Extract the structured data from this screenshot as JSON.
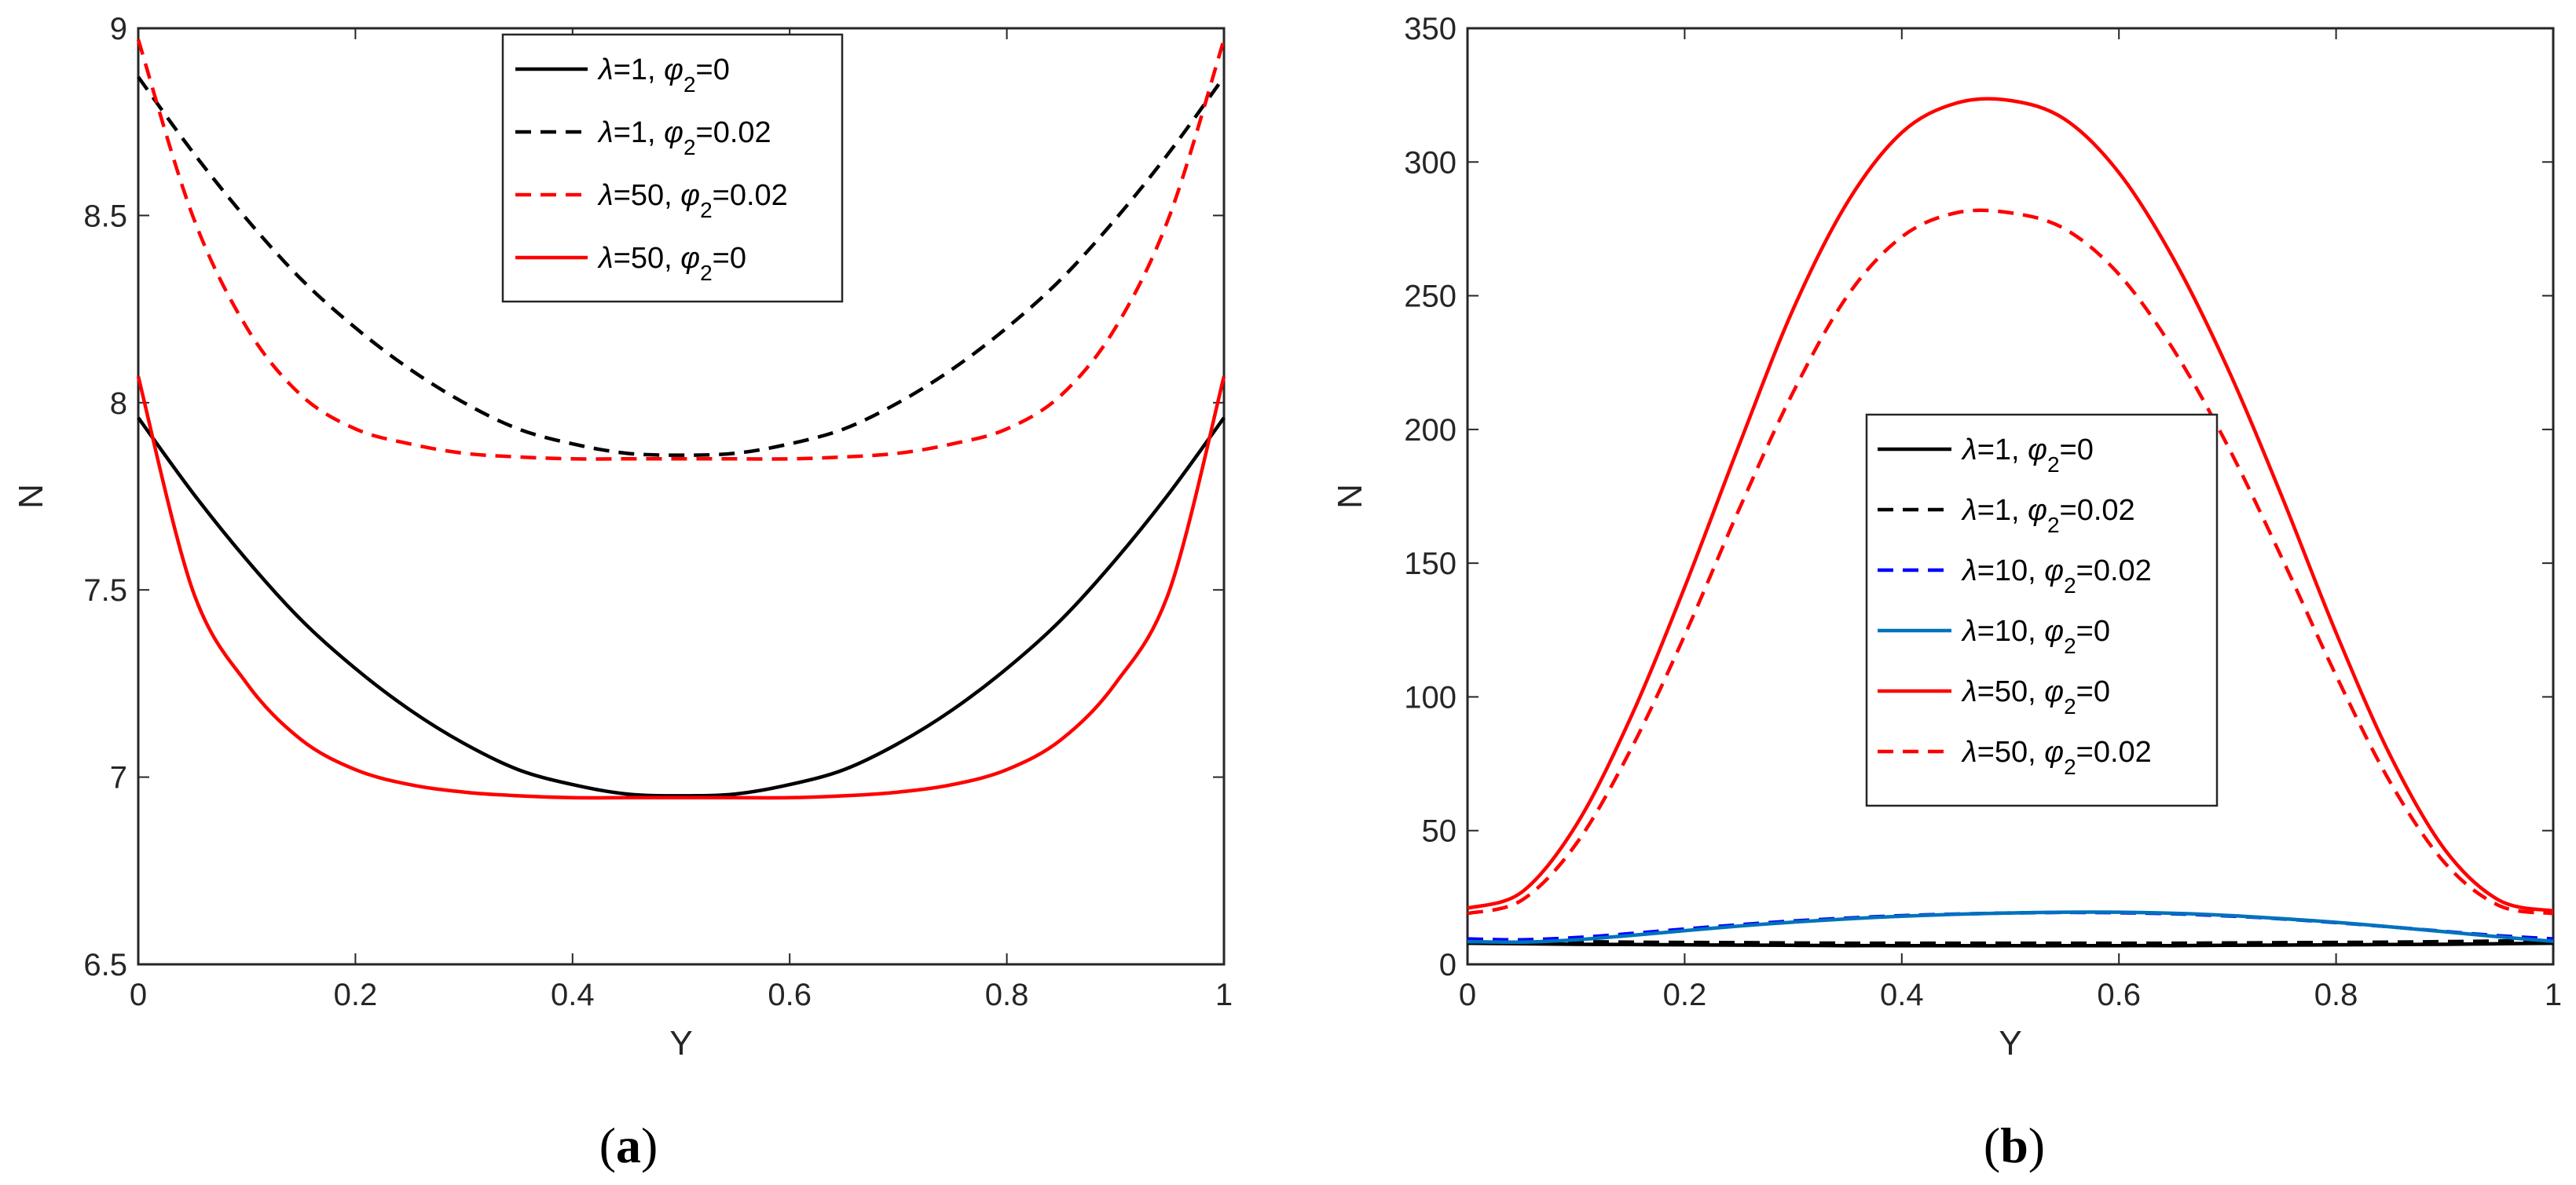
{
  "chart_data": [
    {
      "type": "line",
      "panel": "a",
      "caption": {
        "open": "(",
        "letter": "a",
        "close": ")"
      },
      "xlabel": "Y",
      "ylabel": "N",
      "xlim": [
        0,
        1
      ],
      "ylim": [
        6.5,
        9
      ],
      "xticks": [
        "0",
        "0.2",
        "0.4",
        "0.6",
        "0.8",
        "1"
      ],
      "yticks": [
        "6.5",
        "7",
        "7.5",
        "8",
        "8.5",
        "9"
      ],
      "legend_position": "top-right",
      "x": [
        0,
        0.05,
        0.1,
        0.15,
        0.2,
        0.25,
        0.3,
        0.35,
        0.4,
        0.45,
        0.5,
        0.55,
        0.6,
        0.65,
        0.7,
        0.75,
        0.8,
        0.85,
        0.9,
        0.95,
        1
      ],
      "series": [
        {
          "name": {
            "prefix": "λ",
            "mid": "=1, ",
            "phi": "φ",
            "sub": "2",
            "suffix": "=0"
          },
          "color": "#000000",
          "dash": false,
          "values": [
            7.96,
            7.76,
            7.58,
            7.42,
            7.29,
            7.18,
            7.09,
            7.02,
            6.98,
            6.955,
            6.95,
            6.955,
            6.98,
            7.02,
            7.09,
            7.18,
            7.29,
            7.42,
            7.58,
            7.76,
            7.96
          ]
        },
        {
          "name": {
            "prefix": "λ",
            "mid": "=1, ",
            "phi": "φ",
            "sub": "2",
            "suffix": "=0.02"
          },
          "color": "#000000",
          "dash": true,
          "values": [
            8.87,
            8.67,
            8.49,
            8.33,
            8.2,
            8.09,
            8.0,
            7.93,
            7.89,
            7.865,
            7.86,
            7.865,
            7.89,
            7.93,
            8.0,
            8.09,
            8.2,
            8.33,
            8.49,
            8.67,
            8.87
          ]
        },
        {
          "name": {
            "prefix": "λ",
            "mid": "=50, ",
            "phi": "φ",
            "sub": "2",
            "suffix": "=0.02"
          },
          "color": "#ff0000",
          "dash": true,
          "values": [
            8.97,
            8.5,
            8.2,
            8.02,
            7.93,
            7.89,
            7.865,
            7.855,
            7.85,
            7.85,
            7.85,
            7.85,
            7.85,
            7.855,
            7.865,
            7.89,
            7.93,
            8.02,
            8.2,
            8.5,
            8.97
          ]
        },
        {
          "name": {
            "prefix": "λ",
            "mid": "=50, ",
            "phi": "φ",
            "sub": "2",
            "suffix": "=0"
          },
          "color": "#ff0000",
          "dash": false,
          "values": [
            8.07,
            7.5,
            7.25,
            7.1,
            7.02,
            6.98,
            6.96,
            6.95,
            6.945,
            6.945,
            6.945,
            6.945,
            6.945,
            6.95,
            6.96,
            6.98,
            7.02,
            7.1,
            7.25,
            7.5,
            8.07
          ]
        }
      ]
    },
    {
      "type": "line",
      "panel": "b",
      "caption": {
        "open": "(",
        "letter": "b",
        "close": ")"
      },
      "xlabel": "Y",
      "ylabel": "N",
      "xlim": [
        0,
        1
      ],
      "ylim": [
        0,
        350
      ],
      "xticks": [
        "0",
        "0.2",
        "0.4",
        "0.6",
        "0.8",
        "1"
      ],
      "yticks": [
        "0",
        "50",
        "100",
        "150",
        "200",
        "250",
        "300",
        "350"
      ],
      "legend_position": "center",
      "x": [
        0,
        0.05,
        0.1,
        0.15,
        0.2,
        0.25,
        0.3,
        0.35,
        0.4,
        0.45,
        0.5,
        0.55,
        0.6,
        0.65,
        0.7,
        0.75,
        0.8,
        0.85,
        0.9,
        0.95,
        1
      ],
      "series": [
        {
          "name": {
            "prefix": "λ",
            "mid": "=1, ",
            "phi": "φ",
            "sub": "2",
            "suffix": "=0"
          },
          "color": "#000000",
          "dash": false,
          "values": [
            7.9,
            7.7,
            7.5,
            7.4,
            7.3,
            7.2,
            7.1,
            7.0,
            7.0,
            6.95,
            6.95,
            6.95,
            7.0,
            7.0,
            7.1,
            7.2,
            7.3,
            7.4,
            7.5,
            7.7,
            7.9
          ]
        },
        {
          "name": {
            "prefix": "λ",
            "mid": "=1, ",
            "phi": "φ",
            "sub": "2",
            "suffix": "=0.02"
          },
          "color": "#000000",
          "dash": true,
          "values": [
            8.9,
            8.7,
            8.5,
            8.3,
            8.2,
            8.1,
            8.0,
            7.9,
            7.9,
            7.9,
            7.9,
            7.9,
            7.9,
            7.9,
            8.0,
            8.1,
            8.2,
            8.3,
            8.5,
            8.7,
            8.9
          ]
        },
        {
          "name": {
            "prefix": "λ",
            "mid": "=10, ",
            "phi": "φ",
            "sub": "2",
            "suffix": "=0.02"
          },
          "color": "#0000ff",
          "dash": true,
          "values": [
            9.5,
            9.2,
            10.0,
            11.5,
            13.2,
            14.8,
            16.2,
            17.3,
            18.2,
            18.8,
            19.2,
            19.4,
            19.3,
            18.9,
            18.1,
            17.0,
            15.6,
            14.0,
            12.3,
            10.7,
            9.5
          ]
        },
        {
          "name": {
            "prefix": "λ",
            "mid": "=10, ",
            "phi": "φ",
            "sub": "2",
            "suffix": "=0"
          },
          "color": "#0072bd",
          "dash": false,
          "values": [
            8.5,
            8.3,
            9.2,
            10.8,
            12.6,
            14.3,
            15.8,
            17.0,
            18.0,
            18.7,
            19.2,
            19.5,
            19.5,
            19.1,
            18.3,
            17.1,
            15.7,
            14.0,
            12.2,
            10.3,
            8.6
          ]
        },
        {
          "name": {
            "prefix": "λ",
            "mid": "=50, ",
            "phi": "φ",
            "sub": "2",
            "suffix": "=0"
          },
          "color": "#ff0000",
          "dash": false,
          "values": [
            21,
            27,
            52,
            92,
            141,
            194,
            245,
            285,
            311,
            322,
            323,
            316,
            296,
            264,
            223,
            175,
            124,
            78,
            43,
            24,
            20
          ]
        },
        {
          "name": {
            "prefix": "λ",
            "mid": "=50, ",
            "phi": "φ",
            "sub": "2",
            "suffix": "=0.02"
          },
          "color": "#ff0000",
          "dash": true,
          "values": [
            19,
            24,
            45,
            80,
            123,
            170,
            214,
            250,
            272,
            281,
            281,
            275,
            258,
            230,
            194,
            152,
            108,
            68,
            38,
            22,
            19
          ]
        }
      ]
    }
  ]
}
